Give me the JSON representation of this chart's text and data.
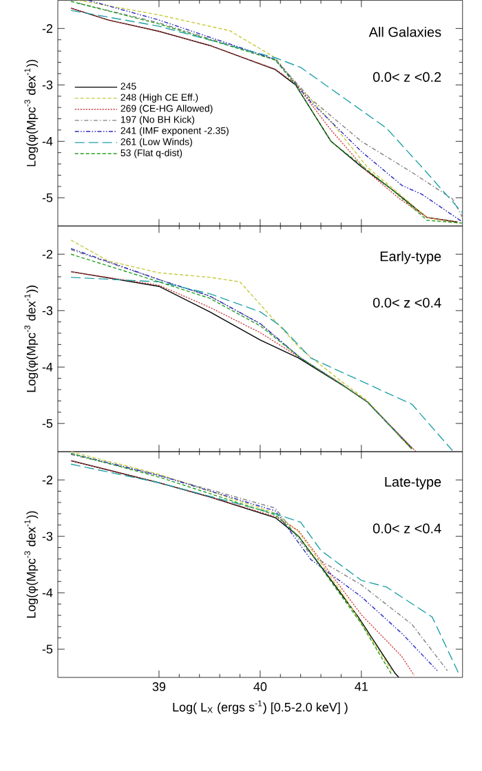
{
  "chart_data": [
    {
      "type": "line",
      "ylabel": "Log(φ(Mpc$^{-3}$ dex$^{-1}$))",
      "annotations": [
        "All Galaxies",
        "0.0< z <0.2"
      ],
      "xlim": [
        38,
        42
      ],
      "ylim": [
        -5.5,
        -1.5
      ],
      "xticks": [
        39,
        40,
        41
      ],
      "yticks": [
        -2,
        -3,
        -4,
        -5
      ],
      "tick_labels": "y",
      "legend": "left",
      "series": [
        {
          "name": "245",
          "color": "#000000",
          "line_style": "solid",
          "x": [
            38.13,
            38.5,
            39.0,
            39.5,
            40.15,
            40.35,
            40.7,
            41.0,
            41.3,
            41.65,
            41.95
          ],
          "values": [
            -1.64,
            -1.85,
            -2.05,
            -2.3,
            -2.73,
            -3.0,
            -4.0,
            -4.45,
            -4.85,
            -5.35,
            -5.43
          ]
        },
        {
          "name": "248 (High CE Eff.)",
          "color": "#c8c83c",
          "line_style": "dashed",
          "x": [
            38.2,
            39.0,
            39.7,
            40.15,
            40.35,
            40.7,
            41.06,
            41.38,
            41.65,
            41.95
          ],
          "values": [
            -1.5,
            -1.76,
            -2.04,
            -2.52,
            -2.97,
            -3.65,
            -4.46,
            -4.94,
            -5.35,
            -5.45
          ]
        },
        {
          "name": "269 (CE-HG Allowed)",
          "color": "#d04040",
          "line_style": "dotted",
          "x": [
            38.13,
            38.5,
            39.0,
            39.5,
            40.15,
            40.35,
            40.7,
            41.06,
            41.38,
            41.65,
            41.95
          ],
          "values": [
            -1.64,
            -1.85,
            -2.05,
            -2.3,
            -2.72,
            -2.98,
            -3.8,
            -4.54,
            -5.02,
            -5.35,
            -5.43
          ]
        },
        {
          "name": "197 (No BH Kick)",
          "color": "#808080",
          "line_style": "dashdot",
          "x": [
            38.2,
            39.0,
            40.15,
            40.5,
            41.0,
            41.5,
            41.9,
            42.0
          ],
          "values": [
            -1.55,
            -1.9,
            -2.55,
            -3.25,
            -4.0,
            -4.55,
            -5.02,
            -5.35
          ]
        },
        {
          "name": "241 (IMF exponent -2.35)",
          "color": "#2a2ac0",
          "line_style": "dashdotdot",
          "x": [
            38.3,
            39.0,
            40.15,
            40.5,
            41.0,
            41.4,
            41.6,
            42.0
          ],
          "values": [
            -1.5,
            -1.85,
            -2.55,
            -3.3,
            -4.18,
            -4.78,
            -4.94,
            -5.43
          ]
        },
        {
          "name": "261 (Low Winds)",
          "color": "#20a0a8",
          "line_style": "longdashed",
          "x": [
            38.13,
            39.0,
            40.15,
            40.4,
            41.0,
            41.25,
            41.6,
            42.0
          ],
          "values": [
            -1.68,
            -1.96,
            -2.52,
            -2.69,
            -3.45,
            -3.77,
            -4.46,
            -5.27
          ]
        },
        {
          "name": "53 (Flat q-dist)",
          "color": "#20a020",
          "line_style": "dashed",
          "x": [
            38.13,
            39.0,
            40.15,
            40.35,
            40.7,
            41.3,
            41.65,
            42.0
          ],
          "values": [
            -1.52,
            -1.92,
            -2.56,
            -3.0,
            -4.0,
            -4.85,
            -5.4,
            -5.45
          ]
        }
      ]
    },
    {
      "type": "line",
      "ylabel": "Log(φ(Mpc$^{-3}$ dex$^{-1}$))",
      "annotations": [
        "Early-type",
        "0.0< z <0.4"
      ],
      "xlim": [
        38,
        42
      ],
      "ylim": [
        -5.5,
        -1.5
      ],
      "xticks": [
        39,
        40,
        41
      ],
      "yticks": [
        -2,
        -3,
        -4,
        -5
      ],
      "tick_labels": "y",
      "series": [
        {
          "color": "#000000",
          "line_style": "solid",
          "x": [
            38.13,
            39.0,
            39.5,
            40.0,
            40.38,
            40.83,
            41.06,
            41.5
          ],
          "values": [
            -2.31,
            -2.57,
            -3.02,
            -3.52,
            -3.84,
            -4.34,
            -4.62,
            -5.44
          ]
        },
        {
          "color": "#c8c83c",
          "line_style": "dashed",
          "x": [
            38.13,
            38.5,
            39.0,
            39.5,
            39.8,
            40.15,
            40.4,
            40.8,
            41.06,
            41.5
          ],
          "values": [
            -1.75,
            -2.12,
            -2.33,
            -2.41,
            -2.49,
            -3.19,
            -3.68,
            -4.25,
            -4.6,
            -5.47
          ]
        },
        {
          "color": "#d04040",
          "line_style": "dotted",
          "x": [
            38.13,
            39.0,
            39.5,
            40.0,
            40.38,
            40.83,
            41.06,
            41.54
          ],
          "values": [
            -2.31,
            -2.55,
            -2.94,
            -3.39,
            -3.82,
            -4.33,
            -4.62,
            -5.5
          ]
        },
        {
          "color": "#808080",
          "line_style": "dashdot",
          "x": [
            38.13,
            39.0,
            39.5,
            40.0,
            40.4,
            40.8,
            41.06,
            41.5
          ],
          "values": [
            -1.92,
            -2.45,
            -2.74,
            -3.23,
            -3.84,
            -4.3,
            -4.62,
            -5.45
          ]
        },
        {
          "color": "#2a2ac0",
          "line_style": "dashdotdot",
          "x": [
            38.13,
            39.0,
            39.5,
            40.0,
            40.4,
            40.8,
            41.06,
            41.5
          ],
          "values": [
            -1.9,
            -2.45,
            -2.74,
            -3.23,
            -3.84,
            -4.3,
            -4.62,
            -5.45
          ]
        },
        {
          "color": "#20a0a8",
          "line_style": "longdashed",
          "x": [
            38.13,
            39.0,
            39.5,
            40.0,
            40.2,
            40.5,
            41.0,
            41.5,
            41.9
          ],
          "values": [
            -2.41,
            -2.49,
            -2.7,
            -3.02,
            -3.27,
            -3.84,
            -4.25,
            -4.66,
            -5.48
          ]
        },
        {
          "color": "#20a020",
          "line_style": "dashed",
          "x": [
            38.13,
            39.0,
            39.5,
            40.0,
            40.4,
            40.8,
            41.06,
            41.5
          ],
          "values": [
            -2.0,
            -2.49,
            -2.78,
            -3.27,
            -3.84,
            -4.3,
            -4.62,
            -5.45
          ]
        }
      ]
    },
    {
      "type": "line",
      "xlabel": "Log( L$_{X}$ (ergs s$^{-1}$) [0.5-2.0 keV] )",
      "ylabel": "Log(φ(Mpc$^{-3}$ dex$^{-1}$))",
      "annotations": [
        "Late-type",
        "0.0< z <0.4"
      ],
      "xlim": [
        38,
        42
      ],
      "ylim": [
        -5.5,
        -1.5
      ],
      "xticks": [
        39,
        40,
        41
      ],
      "yticks": [
        -2,
        -3,
        -4,
        -5
      ],
      "series": [
        {
          "color": "#000000",
          "line_style": "solid",
          "x": [
            38.13,
            39.0,
            39.5,
            40.15,
            40.38,
            40.97,
            41.33,
            41.37
          ],
          "values": [
            -1.66,
            -2.05,
            -2.3,
            -2.67,
            -3.0,
            -4.43,
            -5.42,
            -5.5
          ]
        },
        {
          "color": "#c8c83c",
          "line_style": "dashed",
          "x": [
            38.13,
            39.0,
            40.15,
            40.38,
            40.8,
            41.3
          ],
          "values": [
            -1.5,
            -1.9,
            -2.59,
            -2.92,
            -3.98,
            -5.38
          ]
        },
        {
          "color": "#d04040",
          "line_style": "dotted",
          "x": [
            38.13,
            39.0,
            39.5,
            40.15,
            40.38,
            41.0,
            41.4,
            41.52
          ],
          "values": [
            -1.66,
            -2.05,
            -2.3,
            -2.65,
            -2.9,
            -4.39,
            -5.13,
            -5.46
          ]
        },
        {
          "color": "#808080",
          "line_style": "dashdot",
          "x": [
            38.13,
            39.0,
            40.15,
            40.5,
            41.0,
            41.5,
            41.85
          ],
          "values": [
            -1.55,
            -1.92,
            -2.5,
            -3.33,
            -3.86,
            -4.56,
            -5.38
          ]
        },
        {
          "color": "#2a2ac0",
          "line_style": "dashdotdot",
          "x": [
            38.13,
            39.0,
            40.15,
            40.5,
            41.0,
            41.4,
            41.75
          ],
          "values": [
            -1.53,
            -1.92,
            -2.55,
            -3.41,
            -4.07,
            -4.72,
            -5.38
          ]
        },
        {
          "color": "#20a0a8",
          "line_style": "longdashed",
          "x": [
            38.13,
            39.0,
            40.15,
            40.4,
            40.6,
            41.0,
            41.25,
            41.7,
            41.97
          ],
          "values": [
            -1.72,
            -2.05,
            -2.6,
            -2.75,
            -3.25,
            -3.78,
            -3.9,
            -4.43,
            -5.46
          ]
        },
        {
          "color": "#20a020",
          "line_style": "dashed",
          "x": [
            38.13,
            39.0,
            40.15,
            40.38,
            41.0,
            41.3
          ],
          "values": [
            -1.53,
            -1.95,
            -2.62,
            -3.0,
            -4.55,
            -5.45
          ]
        }
      ]
    }
  ]
}
